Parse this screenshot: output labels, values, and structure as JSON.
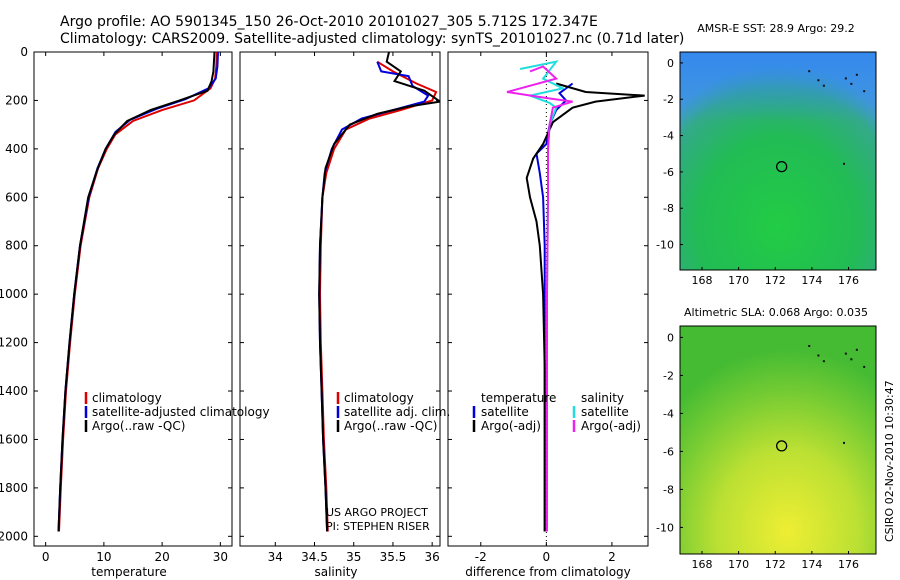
{
  "title": {
    "line1": "Argo profile: AO 5901345_150 26-Oct-2010 20101027_305 5.712S 172.347E",
    "line2": "Climatology: CARS2009. Satellite-adjusted climatology: synTS_20101027.nc (0.71d later)"
  },
  "footer": {
    "project": "US ARGO PROJECT",
    "pi": "PI: STEPHEN RISER",
    "stamp": "CSIRO 02-Nov-2010 10:30:47"
  },
  "colors": {
    "climatology": "#dd0000",
    "satellite": "#0000dd",
    "argo": "#000000",
    "sal_satellite": "#22dddd",
    "sal_argo": "#ee22ee"
  },
  "chart_data": [
    {
      "type": "line",
      "id": "temperature",
      "xlabel": "temperature",
      "ylabel": "",
      "xlim": [
        -2,
        32
      ],
      "ylim": [
        2040,
        0
      ],
      "xticks": [
        "0",
        "10",
        "20",
        "30"
      ],
      "yticks": [
        "0",
        "200",
        "400",
        "600",
        "800",
        "1000",
        "1200",
        "1400",
        "1600",
        "1800",
        "2000"
      ],
      "legend": [
        "climatology",
        "satellite-adjusted climatology",
        "Argo(..raw -QC)"
      ],
      "series": [
        {
          "name": "climatology",
          "color": "#dd0000",
          "points": [
            [
              29.4,
              0
            ],
            [
              29.3,
              60
            ],
            [
              29.1,
              110
            ],
            [
              28.3,
              150
            ],
            [
              25.5,
              200
            ],
            [
              20,
              240
            ],
            [
              15,
              285
            ],
            [
              12,
              340
            ],
            [
              10.5,
              400
            ],
            [
              9,
              480
            ],
            [
              7.5,
              600
            ],
            [
              6,
              800
            ],
            [
              5,
              1000
            ],
            [
              4.2,
              1200
            ],
            [
              3.5,
              1400
            ],
            [
              3,
              1600
            ],
            [
              2.6,
              1800
            ],
            [
              2.3,
              1980
            ]
          ]
        },
        {
          "name": "satellite-adjusted climatology",
          "color": "#0000dd",
          "points": [
            [
              29.6,
              0
            ],
            [
              29.5,
              60
            ],
            [
              29.2,
              110
            ],
            [
              28,
              150
            ],
            [
              24,
              195
            ],
            [
              19,
              235
            ],
            [
              14.5,
              280
            ],
            [
              12,
              330
            ],
            [
              10.3,
              400
            ],
            [
              8.9,
              480
            ],
            [
              7.4,
              600
            ],
            [
              5.9,
              800
            ],
            [
              4.9,
              1000
            ],
            [
              4.1,
              1200
            ],
            [
              3.4,
              1400
            ],
            [
              2.9,
              1600
            ],
            [
              2.5,
              1800
            ],
            [
              2.2,
              1980
            ]
          ]
        },
        {
          "name": "Argo(..raw -QC)",
          "color": "#000000",
          "points": [
            [
              29,
              0
            ],
            [
              28.8,
              80
            ],
            [
              28.5,
              120
            ],
            [
              27.8,
              160
            ],
            [
              23,
              200
            ],
            [
              18,
              240
            ],
            [
              14,
              285
            ],
            [
              11.8,
              340
            ],
            [
              10.3,
              400
            ],
            [
              8.8,
              490
            ],
            [
              7.3,
              600
            ],
            [
              5.9,
              800
            ],
            [
              4.9,
              1000
            ],
            [
              4.1,
              1200
            ],
            [
              3.4,
              1400
            ],
            [
              2.9,
              1600
            ],
            [
              2.5,
              1800
            ],
            [
              2.2,
              1980
            ]
          ]
        }
      ]
    },
    {
      "type": "line",
      "id": "salinity",
      "xlabel": "salinity",
      "xlim": [
        33.55,
        36.1
      ],
      "ylim": [
        2040,
        0
      ],
      "xticks": [
        "34",
        "34.5",
        "35",
        "35.5",
        "36"
      ],
      "legend": [
        "climatology",
        "satellite adj. clim.",
        "Argo(..raw -QC)"
      ],
      "series": [
        {
          "name": "climatology",
          "color": "#dd0000",
          "points": [
            [
              35.3,
              40
            ],
            [
              35.5,
              80
            ],
            [
              35.8,
              130
            ],
            [
              36.05,
              165
            ],
            [
              36.0,
              200
            ],
            [
              35.6,
              240
            ],
            [
              35.2,
              275
            ],
            [
              34.9,
              320
            ],
            [
              34.75,
              400
            ],
            [
              34.65,
              500
            ],
            [
              34.6,
              600
            ],
            [
              34.58,
              800
            ],
            [
              34.57,
              1000
            ],
            [
              34.58,
              1200
            ],
            [
              34.6,
              1400
            ],
            [
              34.62,
              1600
            ],
            [
              34.65,
              1800
            ],
            [
              34.67,
              1980
            ]
          ]
        },
        {
          "name": "satellite adj. clim.",
          "color": "#0000dd",
          "points": [
            [
              35.3,
              40
            ],
            [
              35.35,
              80
            ],
            [
              35.7,
              100
            ],
            [
              35.75,
              140
            ],
            [
              35.95,
              180
            ],
            [
              35.9,
              205
            ],
            [
              35.5,
              240
            ],
            [
              35.1,
              275
            ],
            [
              34.85,
              320
            ],
            [
              34.72,
              400
            ],
            [
              34.63,
              500
            ],
            [
              34.6,
              600
            ],
            [
              34.57,
              800
            ],
            [
              34.56,
              1000
            ],
            [
              34.57,
              1200
            ],
            [
              34.59,
              1400
            ],
            [
              34.61,
              1600
            ],
            [
              34.64,
              1800
            ],
            [
              34.66,
              1980
            ]
          ]
        },
        {
          "name": "Argo(..raw -QC)",
          "color": "#000000",
          "points": [
            [
              35.45,
              0
            ],
            [
              35.42,
              40
            ],
            [
              35.6,
              80
            ],
            [
              35.52,
              120
            ],
            [
              35.9,
              160
            ],
            [
              36.1,
              205
            ],
            [
              35.7,
              225
            ],
            [
              35.3,
              255
            ],
            [
              34.95,
              300
            ],
            [
              34.75,
              380
            ],
            [
              34.64,
              480
            ],
            [
              34.6,
              600
            ],
            [
              34.57,
              800
            ],
            [
              34.56,
              1000
            ],
            [
              34.57,
              1200
            ],
            [
              34.59,
              1400
            ],
            [
              34.61,
              1600
            ],
            [
              34.64,
              1800
            ],
            [
              34.66,
              1980
            ]
          ]
        }
      ]
    },
    {
      "type": "line",
      "id": "difference",
      "xlabel": "difference from climatology",
      "xlim": [
        -3,
        3.1
      ],
      "ylim": [
        2040,
        0
      ],
      "xticks": [
        "-2",
        "0",
        "2"
      ],
      "legend_headers": [
        "temperature",
        "salinity"
      ],
      "legend": [
        "satellite",
        "Argo(-adj)",
        "satellite",
        "Argo(-adj)"
      ],
      "series": [
        {
          "name": "temperature satellite",
          "color": "#0000dd",
          "points": [
            [
              0.8,
              130
            ],
            [
              0.4,
              170
            ],
            [
              0.6,
              200
            ],
            [
              0.3,
              240
            ],
            [
              0.1,
              300
            ],
            [
              0.0,
              380
            ],
            [
              -0.3,
              420
            ],
            [
              -0.2,
              500
            ],
            [
              -0.1,
              600
            ],
            [
              -0.05,
              800
            ],
            [
              -0.05,
              1000
            ],
            [
              -0.05,
              1300
            ],
            [
              -0.05,
              1600
            ],
            [
              -0.05,
              1800
            ],
            [
              -0.05,
              1980
            ]
          ]
        },
        {
          "name": "temperature Argo(-adj)",
          "color": "#000000",
          "points": [
            [
              0.3,
              130
            ],
            [
              1.2,
              165
            ],
            [
              3.0,
              180
            ],
            [
              1.5,
              205
            ],
            [
              0.8,
              230
            ],
            [
              0.2,
              290
            ],
            [
              -0.1,
              380
            ],
            [
              -0.4,
              440
            ],
            [
              -0.6,
              520
            ],
            [
              -0.5,
              600
            ],
            [
              -0.3,
              700
            ],
            [
              -0.2,
              800
            ],
            [
              -0.1,
              1000
            ],
            [
              -0.05,
              1300
            ],
            [
              -0.05,
              1600
            ],
            [
              -0.05,
              1800
            ],
            [
              -0.05,
              1980
            ]
          ]
        },
        {
          "name": "salinity satellite",
          "color": "#22dddd",
          "points": [
            [
              -0.8,
              70
            ],
            [
              0.3,
              40
            ],
            [
              -0.1,
              110
            ],
            [
              0.5,
              150
            ],
            [
              -0.5,
              180
            ],
            [
              0.1,
              210
            ],
            [
              0.3,
              230
            ],
            [
              0.1,
              300
            ],
            [
              0.05,
              400
            ],
            [
              0.05,
              600
            ],
            [
              0.02,
              1000
            ],
            [
              0.02,
              1500
            ],
            [
              0.02,
              1980
            ]
          ]
        },
        {
          "name": "salinity Argo(-adj)",
          "color": "#ee22ee",
          "points": [
            [
              -0.5,
              80
            ],
            [
              -0.1,
              60
            ],
            [
              0.3,
              110
            ],
            [
              -1.2,
              165
            ],
            [
              0.0,
              190
            ],
            [
              0.8,
              205
            ],
            [
              0.2,
              230
            ],
            [
              0.1,
              300
            ],
            [
              0.05,
              400
            ],
            [
              0.05,
              600
            ],
            [
              0.02,
              1000
            ],
            [
              0.02,
              1500
            ],
            [
              0.02,
              1980
            ]
          ]
        }
      ]
    },
    {
      "type": "heatmap",
      "id": "sst-map",
      "title": "AMSR-E SST: 28.9 Argo: 29.2",
      "xlim": [
        166.8,
        177.5
      ],
      "ylim": [
        -11.4,
        0.6
      ],
      "xticks": [
        "168",
        "170",
        "172",
        "174",
        "176"
      ],
      "yticks": [
        "0",
        "-2",
        "-4",
        "-6",
        "-8",
        "-10"
      ],
      "marker": {
        "lon": 172.35,
        "lat": -5.71
      }
    },
    {
      "type": "heatmap",
      "id": "sla-map",
      "title": "Altimetric SLA: 0.068 Argo: 0.035",
      "xlim": [
        166.8,
        177.5
      ],
      "ylim": [
        -11.4,
        0.6
      ],
      "xticks": [
        "168",
        "170",
        "172",
        "174",
        "176"
      ],
      "yticks": [
        "0",
        "-2",
        "-4",
        "-6",
        "-8",
        "-10"
      ],
      "marker": {
        "lon": 172.35,
        "lat": -5.71
      }
    }
  ]
}
